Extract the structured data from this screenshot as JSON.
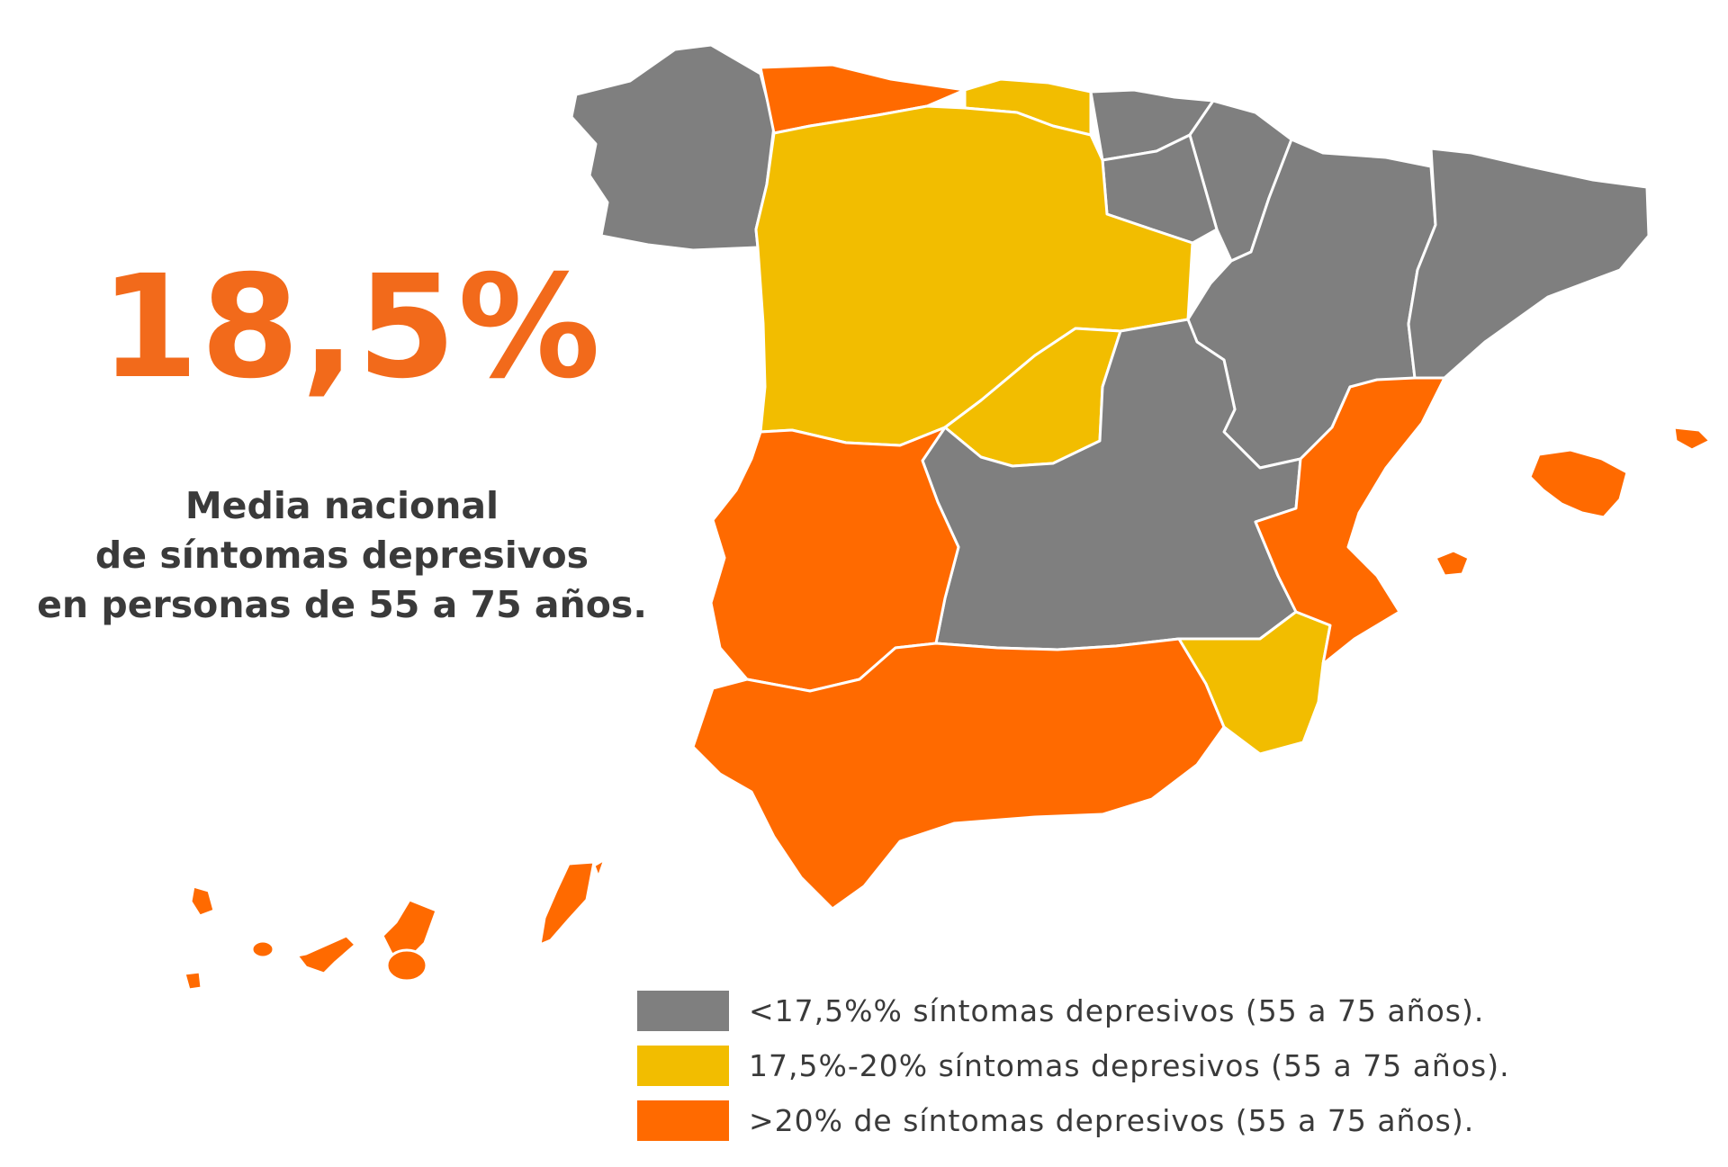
{
  "colors": {
    "low": "#7f7f7f",
    "mid": "#f2bd00",
    "high": "#ff6a00",
    "headline": "#f26a1b",
    "text": "#3a3a3a"
  },
  "headline": "18,5%",
  "subtitle": {
    "line1": "Media nacional",
    "line2": "de síntomas depresivos",
    "line3": "en personas de 55 a 75 años."
  },
  "legend": [
    {
      "label": "<17,5%% síntomas depresivos (55 a 75 años).",
      "category": "low"
    },
    {
      "label": "17,5%-20% síntomas depresivos (55 a 75 años).",
      "category": "mid"
    },
    {
      "label": ">20% de síntomas depresivos (55 a 75 años).",
      "category": "high"
    }
  ],
  "regions": [
    {
      "name": "Galicia",
      "category": "low"
    },
    {
      "name": "Asturias",
      "category": "high"
    },
    {
      "name": "Cantabria",
      "category": "mid"
    },
    {
      "name": "País Vasco",
      "category": "low"
    },
    {
      "name": "Navarra",
      "category": "low"
    },
    {
      "name": "La Rioja",
      "category": "low"
    },
    {
      "name": "Aragón",
      "category": "low"
    },
    {
      "name": "Cataluña",
      "category": "low"
    },
    {
      "name": "Castilla y León",
      "category": "mid"
    },
    {
      "name": "Madrid",
      "category": "mid"
    },
    {
      "name": "Castilla-La Mancha",
      "category": "low"
    },
    {
      "name": "Extremadura",
      "category": "high"
    },
    {
      "name": "Andalucía",
      "category": "high"
    },
    {
      "name": "Murcia",
      "category": "mid"
    },
    {
      "name": "Comunidad Valenciana",
      "category": "high"
    },
    {
      "name": "Islas Baleares",
      "category": "high"
    },
    {
      "name": "Canarias",
      "category": "high"
    }
  ]
}
